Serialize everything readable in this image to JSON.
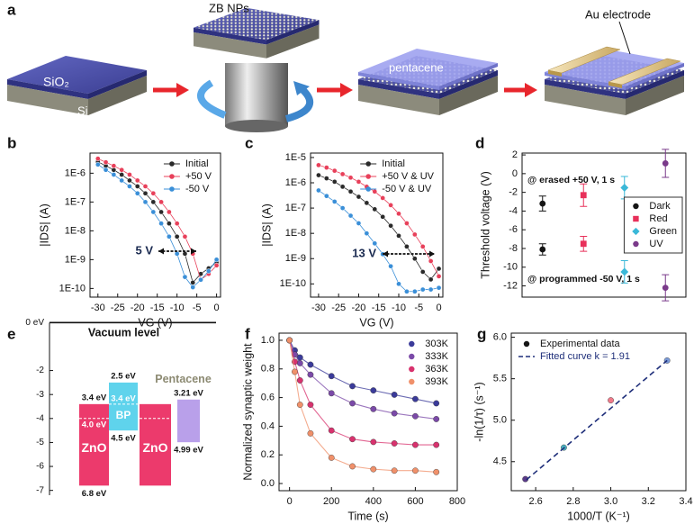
{
  "schematic": {
    "panel": "a",
    "particles": "ZB NPs",
    "oxide": "SiO₂",
    "substrate": "Si",
    "film": "pentacene",
    "electrode": "Au electrode"
  },
  "chart_data": [
    {
      "type": "line",
      "panel": "b",
      "xlabel": "VG (V)",
      "ylabel": "|IDS| (A)",
      "x": [
        -30,
        -28,
        -26,
        -24,
        -22,
        -20,
        -18,
        -16,
        -14,
        -12,
        -10,
        -8,
        -6,
        -4,
        -2,
        0
      ],
      "series": [
        {
          "name": "Initial",
          "color": "#2a2a2a",
          "values": [
            2.5e-06,
            1.8e-06,
            1.3e-06,
            8.9e-07,
            5.6e-07,
            3.5e-07,
            2e-07,
            1e-07,
            4.5e-08,
            1.8e-08,
            6.3e-09,
            1.6e-09,
            1.6e-10,
            3.2e-10,
            5e-10,
            8e-10
          ]
        },
        {
          "name": "+50 V",
          "color": "#e8405a",
          "values": [
            3.2e-06,
            2.4e-06,
            1.8e-06,
            1.3e-06,
            8.9e-07,
            5.6e-07,
            3.5e-07,
            2e-07,
            1e-07,
            4.5e-08,
            1.8e-08,
            6.3e-09,
            1.6e-09,
            2e-10,
            3.2e-10,
            6.3e-10
          ]
        },
        {
          "name": "-50 V",
          "color": "#3a8fd8",
          "values": [
            2e-06,
            1.3e-06,
            8.9e-07,
            5.6e-07,
            3.5e-07,
            2e-07,
            1e-07,
            4.5e-08,
            1.8e-08,
            6.3e-09,
            1.6e-09,
            2.5e-10,
            1.1e-10,
            2e-10,
            4e-10,
            1e-09
          ]
        }
      ],
      "xlim": [
        -32,
        1
      ],
      "xticks": [
        -30,
        -25,
        -20,
        -15,
        -10,
        -5,
        0
      ],
      "log_y": true,
      "ylim": [
        5e-11,
        5e-06
      ],
      "yticks": [
        {
          "value": 1e-06,
          "label": "1E-6"
        },
        {
          "value": 1e-07,
          "label": "1E-7"
        },
        {
          "value": 1e-08,
          "label": "1E-8"
        },
        {
          "value": 1e-09,
          "label": "1E-9"
        },
        {
          "value": 1e-10,
          "label": "1E-10"
        }
      ],
      "legend": "upper right",
      "annotation": "5 V"
    },
    {
      "type": "line",
      "panel": "c",
      "xlabel": "VG (V)",
      "ylabel": "|IDS| (A)",
      "x": [
        -30,
        -28,
        -26,
        -24,
        -22,
        -20,
        -18,
        -16,
        -14,
        -12,
        -10,
        -8,
        -6,
        -4,
        -2,
        0
      ],
      "series": [
        {
          "name": "Initial",
          "color": "#2a2a2a",
          "values": [
            2e-06,
            1.5e-06,
            1.1e-06,
            7e-07,
            4.5e-07,
            2.8e-07,
            1.6e-07,
            9e-08,
            4.5e-08,
            2e-08,
            8e-09,
            3e-09,
            1e-09,
            3e-10,
            1.5e-10,
            4e-10
          ]
        },
        {
          "name": "+50 V & UV",
          "color": "#e8405a",
          "values": [
            5e-06,
            4e-06,
            3e-06,
            2.2e-06,
            1.6e-06,
            1.1e-06,
            7e-07,
            4.5e-07,
            2.5e-07,
            1.3e-07,
            6e-08,
            2.5e-08,
            9e-09,
            3e-09,
            8e-10,
            2e-10
          ]
        },
        {
          "name": "-50 V & UV",
          "color": "#3a8fd8",
          "values": [
            5e-07,
            3e-07,
            1.8e-07,
            1e-07,
            5e-08,
            2.5e-08,
            1e-08,
            4e-09,
            1.5e-09,
            5e-10,
            1e-10,
            5e-11,
            5e-11,
            6e-11,
            6e-11,
            7e-11
          ]
        }
      ],
      "xlim": [
        -32,
        1
      ],
      "xticks": [
        -30,
        -25,
        -20,
        -15,
        -10,
        -5,
        0
      ],
      "log_y": true,
      "ylim": [
        3e-11,
        1.5e-05
      ],
      "yticks": [
        {
          "value": 1e-05,
          "label": "1E-5"
        },
        {
          "value": 1e-06,
          "label": "1E-6"
        },
        {
          "value": 1e-07,
          "label": "1E-7"
        },
        {
          "value": 1e-08,
          "label": "1E-8"
        },
        {
          "value": 1e-09,
          "label": "1E-9"
        },
        {
          "value": 1e-10,
          "label": "1E-10"
        }
      ],
      "legend": "upper right",
      "annotation": "13 V"
    },
    {
      "type": "errorbar",
      "panel": "d",
      "ylabel": "Threshold voltage (V)",
      "groups": [
        "@ erased +50 V, 1 s",
        "@ programmed -50 V, 1 s"
      ],
      "series": [
        {
          "name": "Dark",
          "color": "#151515",
          "marker": "circle",
          "values": [
            -3.2,
            -8.1
          ],
          "errors": [
            0.8,
            0.6
          ]
        },
        {
          "name": "Red",
          "color": "#e8305a",
          "marker": "square",
          "values": [
            -2.3,
            -7.5
          ],
          "errors": [
            1.2,
            0.8
          ]
        },
        {
          "name": "Green",
          "color": "#3ab8d8",
          "marker": "diamond",
          "values": [
            -1.5,
            -10.5
          ],
          "errors": [
            1.2,
            1.2
          ]
        },
        {
          "name": "UV",
          "color": "#7a3a8a",
          "marker": "circle",
          "values": [
            1.1,
            -12.2
          ],
          "errors": [
            1.5,
            1.4
          ]
        }
      ],
      "ylim": [
        -13.2,
        2.2
      ],
      "yticks": [
        2,
        0,
        -2,
        -4,
        -6,
        -8,
        -10,
        -12
      ],
      "legend": "center right",
      "legend_frame": true
    },
    {
      "type": "band",
      "panel": "e",
      "title": "Vacuum level",
      "ylim": [
        -7.2,
        0.2
      ],
      "yticks": [
        {
          "value": 0,
          "label": "0 eV"
        },
        -2,
        -3,
        -4,
        -5,
        -6,
        -7
      ],
      "bands": [
        {
          "name": "ZnO",
          "color": "#ec3a6c",
          "top": -3.4,
          "bottom": -6.8,
          "top_label": "3.4 eV",
          "bottom_label": "6.8 eV",
          "fermi": -4.0,
          "fermi_label": "4.0 eV"
        },
        {
          "name": "BP",
          "color": "#5fd3ec",
          "top": -2.5,
          "bottom": -4.5,
          "top_label": "2.5 eV",
          "bottom_label": "4.5 eV",
          "level": -3.4,
          "level_label": "3.4 eV"
        },
        {
          "name": "ZnO",
          "color": "#ec3a6c",
          "top": -3.4,
          "bottom": -6.8,
          "fermi": -4.0
        },
        {
          "name": "Pentacene",
          "color": "#b9a0ea",
          "top": -3.21,
          "bottom": -4.99,
          "top_label": "3.21 eV",
          "bottom_label": "4.99 eV",
          "name_position": "above",
          "name_color": "#8c8a72"
        }
      ]
    },
    {
      "type": "scatter",
      "panel": "f",
      "xlabel": "Time (s)",
      "ylabel": "Normalized synaptic weight",
      "x": [
        0,
        25,
        50,
        100,
        200,
        300,
        400,
        500,
        600,
        700
      ],
      "series": [
        {
          "name": "303K",
          "color": "#3b3b9a",
          "style": "line",
          "values": [
            1.0,
            0.93,
            0.88,
            0.83,
            0.75,
            0.68,
            0.65,
            0.62,
            0.59,
            0.56
          ]
        },
        {
          "name": "333K",
          "color": "#7b4aa8",
          "style": "line",
          "values": [
            1.0,
            0.9,
            0.84,
            0.76,
            0.63,
            0.56,
            0.52,
            0.49,
            0.47,
            0.45
          ]
        },
        {
          "name": "363K",
          "color": "#d8326e",
          "style": "line",
          "values": [
            1.0,
            0.85,
            0.72,
            0.55,
            0.37,
            0.31,
            0.29,
            0.28,
            0.27,
            0.27
          ]
        },
        {
          "name": "393K",
          "color": "#f0906a",
          "style": "line",
          "values": [
            1.0,
            0.78,
            0.55,
            0.35,
            0.18,
            0.12,
            0.1,
            0.09,
            0.09,
            0.08
          ]
        }
      ],
      "xlim": [
        -50,
        800
      ],
      "xticks": [
        0,
        200,
        400,
        600,
        800
      ],
      "ylim": [
        -0.05,
        1.05
      ],
      "yticks": [
        {
          "value": 0,
          "label": "0.0"
        },
        0.2,
        0.4,
        0.6,
        0.8,
        {
          "value": 1,
          "label": "1.0"
        }
      ],
      "legend": "upper right"
    },
    {
      "type": "scatter",
      "panel": "g",
      "xlabel": "1000/T (K⁻¹)",
      "ylabel": "-ln(1/τ) (s⁻¹)",
      "series": [
        {
          "name": "Experimental data",
          "color": "#151515",
          "style": "points",
          "x": [
            2.545,
            2.75,
            3.0,
            3.3
          ],
          "values": [
            4.29,
            4.67,
            5.24,
            5.72
          ],
          "colors": [
            "#5b3b8a",
            "#4ab0c0",
            "#f07a8a",
            "#7a9ad8"
          ]
        },
        {
          "name": "Fitted curve k = 1.91",
          "color": "#1f2f7a",
          "style": "dash",
          "x": [
            2.55,
            3.3
          ],
          "values": [
            4.28,
            5.72
          ]
        }
      ],
      "xlim": [
        2.47,
        3.4
      ],
      "xticks": [
        2.6,
        2.8,
        {
          "value": 3,
          "label": "3.0"
        },
        3.2,
        3.4
      ],
      "ylim": [
        4.15,
        6.05
      ],
      "yticks": [
        4.5,
        {
          "value": 5,
          "label": "5.0"
        },
        5.5,
        {
          "value": 6,
          "label": "6.0"
        }
      ],
      "legend": "upper left",
      "legend_colored_text": true
    }
  ]
}
